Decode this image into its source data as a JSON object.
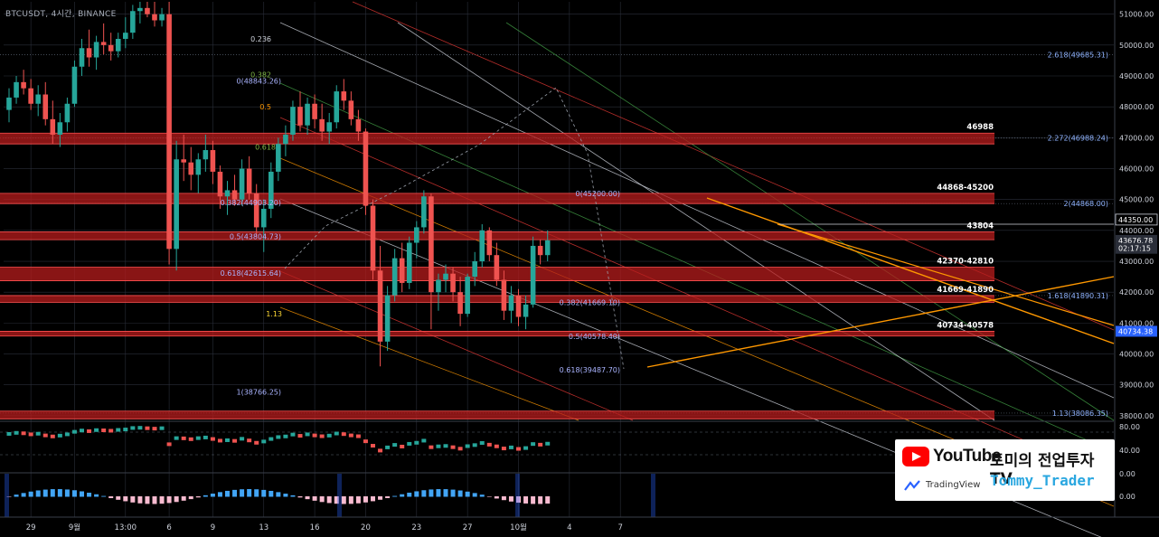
{
  "symbol": "BTCUSDT, 4시간, BINANCE",
  "colors": {
    "background": "#000000",
    "candle_up": "#26a69a",
    "candle_down": "#ef5350",
    "zone": "#b71c1c",
    "trend_orange": "#ff9800",
    "grid": "#2a2e39",
    "last_price": "#2962ff"
  },
  "chart_data": {
    "type": "candlestick",
    "title": "",
    "price_axis": {
      "min": 37850,
      "max": 51400,
      "ticks": [
        51000,
        50000,
        49000,
        48000,
        47000,
        46000,
        45000,
        44000,
        43000,
        42000,
        41000,
        40000,
        39000,
        38000
      ],
      "tick_labels": [
        "51000.00",
        "50000.00",
        "49000.00",
        "48000.00",
        "47000.00",
        "46000.00",
        "45000.00",
        "44000.00",
        "43000.00",
        "42000.00",
        "41000.00",
        "40000.00",
        "39000.00",
        "38000.00"
      ]
    },
    "time_axis": {
      "labels": [
        "29",
        "9월",
        "13:00",
        "6",
        "9",
        "13",
        "16",
        "20",
        "23",
        "27",
        "10월",
        "4",
        "7"
      ],
      "positions_index": [
        3,
        9,
        16,
        22,
        28,
        35,
        42,
        49,
        56,
        63,
        70,
        77,
        84
      ]
    },
    "candles": [
      {
        "o": 47900,
        "h": 48600,
        "l": 47500,
        "c": 48300
      },
      {
        "o": 48300,
        "h": 49000,
        "l": 48100,
        "c": 48800
      },
      {
        "o": 48800,
        "h": 49200,
        "l": 48400,
        "c": 48600
      },
      {
        "o": 48600,
        "h": 48900,
        "l": 47900,
        "c": 48100
      },
      {
        "o": 48100,
        "h": 48700,
        "l": 47700,
        "c": 48400
      },
      {
        "o": 48400,
        "h": 48800,
        "l": 47400,
        "c": 47600
      },
      {
        "o": 47600,
        "h": 48200,
        "l": 46800,
        "c": 47100
      },
      {
        "o": 47100,
        "h": 47800,
        "l": 46700,
        "c": 47500
      },
      {
        "o": 47500,
        "h": 48300,
        "l": 47200,
        "c": 48100
      },
      {
        "o": 48100,
        "h": 49500,
        "l": 48000,
        "c": 49300
      },
      {
        "o": 49300,
        "h": 50200,
        "l": 49000,
        "c": 49900
      },
      {
        "o": 49900,
        "h": 50500,
        "l": 49300,
        "c": 49600
      },
      {
        "o": 49600,
        "h": 50300,
        "l": 49200,
        "c": 50100
      },
      {
        "o": 50100,
        "h": 50700,
        "l": 49700,
        "c": 50000
      },
      {
        "o": 50000,
        "h": 50400,
        "l": 49500,
        "c": 49800
      },
      {
        "o": 49800,
        "h": 50400,
        "l": 49600,
        "c": 50200
      },
      {
        "o": 50200,
        "h": 50900,
        "l": 49900,
        "c": 50400
      },
      {
        "o": 50400,
        "h": 51300,
        "l": 50200,
        "c": 51100
      },
      {
        "o": 51100,
        "h": 51400,
        "l": 50700,
        "c": 51200
      },
      {
        "o": 51200,
        "h": 51400,
        "l": 50900,
        "c": 51000
      },
      {
        "o": 51000,
        "h": 51400,
        "l": 50600,
        "c": 50800
      },
      {
        "o": 50800,
        "h": 51200,
        "l": 50600,
        "c": 51000
      },
      {
        "o": 51000,
        "h": 51400,
        "l": 42900,
        "c": 43400
      },
      {
        "o": 43400,
        "h": 46900,
        "l": 42700,
        "c": 46300
      },
      {
        "o": 46300,
        "h": 47100,
        "l": 45600,
        "c": 46200
      },
      {
        "o": 46200,
        "h": 46700,
        "l": 45300,
        "c": 45800
      },
      {
        "o": 45800,
        "h": 46500,
        "l": 45200,
        "c": 46300
      },
      {
        "o": 46300,
        "h": 47100,
        "l": 45900,
        "c": 46600
      },
      {
        "o": 46600,
        "h": 46900,
        "l": 45500,
        "c": 45900
      },
      {
        "o": 45900,
        "h": 46100,
        "l": 44700,
        "c": 45100
      },
      {
        "o": 45100,
        "h": 45600,
        "l": 44500,
        "c": 45300
      },
      {
        "o": 45300,
        "h": 45800,
        "l": 44800,
        "c": 45000
      },
      {
        "o": 45000,
        "h": 46300,
        "l": 44800,
        "c": 46000
      },
      {
        "o": 46000,
        "h": 46400,
        "l": 45000,
        "c": 45200
      },
      {
        "o": 45200,
        "h": 45500,
        "l": 43800,
        "c": 44100
      },
      {
        "o": 44100,
        "h": 45000,
        "l": 43300,
        "c": 44700
      },
      {
        "o": 44700,
        "h": 46200,
        "l": 44400,
        "c": 45900
      },
      {
        "o": 45900,
        "h": 47000,
        "l": 45600,
        "c": 46800
      },
      {
        "o": 46800,
        "h": 47400,
        "l": 46400,
        "c": 47100
      },
      {
        "o": 47100,
        "h": 48200,
        "l": 46900,
        "c": 48000
      },
      {
        "o": 48000,
        "h": 48500,
        "l": 47200,
        "c": 47400
      },
      {
        "o": 47400,
        "h": 48300,
        "l": 47100,
        "c": 48100
      },
      {
        "o": 48100,
        "h": 48400,
        "l": 47300,
        "c": 47600
      },
      {
        "o": 47600,
        "h": 48100,
        "l": 46900,
        "c": 47200
      },
      {
        "o": 47200,
        "h": 47800,
        "l": 46800,
        "c": 47500
      },
      {
        "o": 47500,
        "h": 48700,
        "l": 47300,
        "c": 48500
      },
      {
        "o": 48500,
        "h": 48900,
        "l": 47900,
        "c": 48200
      },
      {
        "o": 48200,
        "h": 48500,
        "l": 47400,
        "c": 47600
      },
      {
        "o": 47600,
        "h": 47900,
        "l": 46900,
        "c": 47200
      },
      {
        "o": 47200,
        "h": 47300,
        "l": 44500,
        "c": 44800
      },
      {
        "o": 44800,
        "h": 45000,
        "l": 42400,
        "c": 42700
      },
      {
        "o": 42700,
        "h": 43500,
        "l": 39600,
        "c": 40400
      },
      {
        "o": 40400,
        "h": 42200,
        "l": 40100,
        "c": 41900
      },
      {
        "o": 41900,
        "h": 43400,
        "l": 41700,
        "c": 43100
      },
      {
        "o": 43100,
        "h": 43600,
        "l": 42000,
        "c": 42300
      },
      {
        "o": 42300,
        "h": 43800,
        "l": 42100,
        "c": 43600
      },
      {
        "o": 43600,
        "h": 44300,
        "l": 43100,
        "c": 44100
      },
      {
        "o": 44100,
        "h": 45300,
        "l": 43900,
        "c": 45100
      },
      {
        "o": 45100,
        "h": 45200,
        "l": 40800,
        "c": 42000
      },
      {
        "o": 42000,
        "h": 42600,
        "l": 41400,
        "c": 42400
      },
      {
        "o": 42400,
        "h": 42900,
        "l": 42000,
        "c": 42600
      },
      {
        "o": 42600,
        "h": 42800,
        "l": 41700,
        "c": 42000
      },
      {
        "o": 42000,
        "h": 42500,
        "l": 40900,
        "c": 41300
      },
      {
        "o": 41300,
        "h": 42600,
        "l": 41200,
        "c": 42500
      },
      {
        "o": 42500,
        "h": 43300,
        "l": 42200,
        "c": 43000
      },
      {
        "o": 43000,
        "h": 44200,
        "l": 42800,
        "c": 44000
      },
      {
        "o": 44000,
        "h": 44100,
        "l": 43000,
        "c": 43200
      },
      {
        "o": 43200,
        "h": 43600,
        "l": 42200,
        "c": 42400
      },
      {
        "o": 42400,
        "h": 42700,
        "l": 41100,
        "c": 41400
      },
      {
        "o": 41400,
        "h": 42200,
        "l": 41000,
        "c": 41900
      },
      {
        "o": 41900,
        "h": 42100,
        "l": 40900,
        "c": 41200
      },
      {
        "o": 41200,
        "h": 41900,
        "l": 40800,
        "c": 41600
      },
      {
        "o": 41600,
        "h": 43800,
        "l": 41500,
        "c": 43500
      },
      {
        "o": 43500,
        "h": 43700,
        "l": 42900,
        "c": 43200
      },
      {
        "o": 43200,
        "h": 44000,
        "l": 43000,
        "c": 43677
      }
    ],
    "zones": [
      {
        "label": "46988",
        "low": 46800,
        "high": 47150
      },
      {
        "label": "44868-45200",
        "low": 44868,
        "high": 45200
      },
      {
        "label": "43804",
        "low": 43700,
        "high": 43950
      },
      {
        "label": "42370-42810",
        "low": 42370,
        "high": 42810
      },
      {
        "label": "41669-41890",
        "low": 41669,
        "high": 41890
      },
      {
        "label": "40734-40578",
        "low": 40578,
        "high": 40734
      },
      {
        "label": "",
        "low": 37900,
        "high": 38150
      }
    ],
    "fib_labels_right": [
      {
        "text": "2.618(49685.31)",
        "price": 49685.31
      },
      {
        "text": "2.272(46988.24)",
        "price": 46988.24
      },
      {
        "text": "2(44868.00)",
        "price": 44868
      },
      {
        "text": "1.618(41890.31)",
        "price": 41890.31
      },
      {
        "text": "1.13(38086.35)",
        "price": 38086.35
      }
    ],
    "fib_labels_left": [
      {
        "text": "0.236",
        "price": 50200
      },
      {
        "text": "0.382",
        "price": 49050
      },
      {
        "text": "0(48843.26)",
        "price": 48843.26
      },
      {
        "text": "0.5",
        "price": 48000
      },
      {
        "text": "0.618",
        "price": 46700
      },
      {
        "text": "0.382(44903.20)",
        "price": 44903.2
      },
      {
        "text": "0.5(43804.73)",
        "price": 43804.73
      },
      {
        "text": "0.618(42615.64)",
        "price": 42615.64
      },
      {
        "text": "1.13",
        "price": 41300
      },
      {
        "text": "1(38766.25)",
        "price": 38766.25
      }
    ],
    "fib_labels_mid": [
      {
        "text": "0(45200.00)",
        "price": 45200
      },
      {
        "text": "0.382(41669.10)",
        "price": 41669.1
      },
      {
        "text": "0.5(40578.40)",
        "price": 40578.4
      },
      {
        "text": "0.618(39487.70)",
        "price": 39487.7
      }
    ],
    "price_tags": [
      {
        "text": "44350.00",
        "price": 44350,
        "kind": "outline"
      },
      {
        "text": "43676.78",
        "price": 43676.78,
        "kind": "gray"
      },
      {
        "text": "02:17:15",
        "price": 43420,
        "kind": "gray"
      },
      {
        "text": "40734.38",
        "price": 40734.38,
        "kind": "blue"
      }
    ],
    "osc_axis": [
      "80.00",
      "40.00",
      "0.00"
    ],
    "macd_axis": [
      "0.00"
    ]
  },
  "brand": {
    "youtube": "YouTube",
    "channel": "토미의 전업투자TV",
    "tradingview": "TradingView",
    "handle": "Tommy_Trader"
  }
}
